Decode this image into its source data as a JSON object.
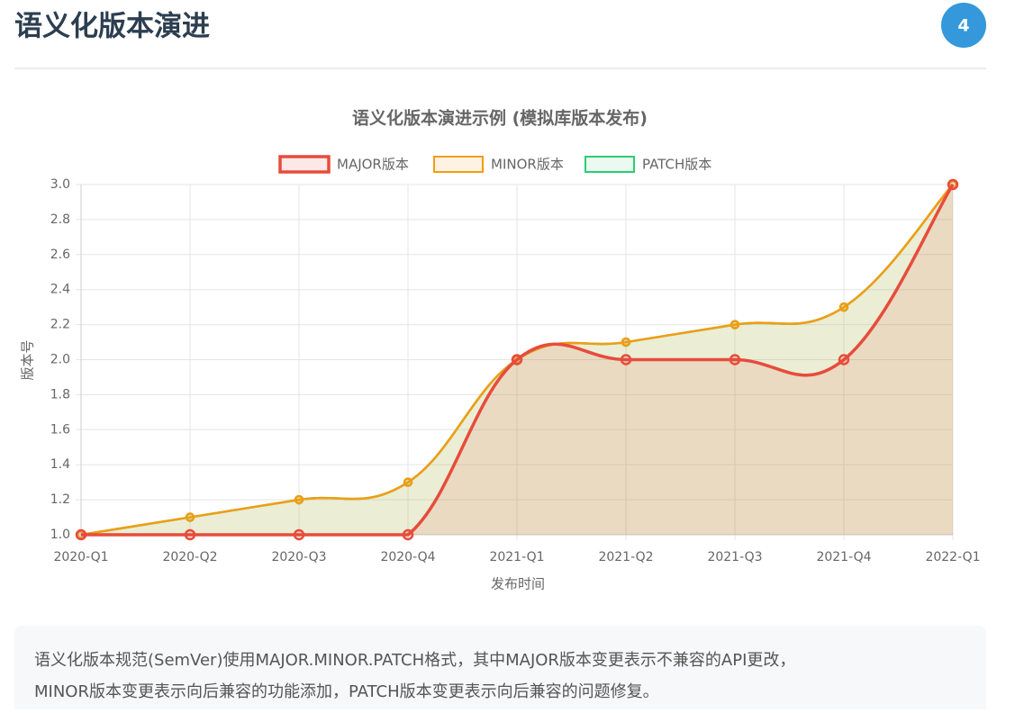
{
  "header": {
    "title": "语义化版本演进",
    "badge": "4"
  },
  "chart_data": {
    "type": "line",
    "title": "语义化版本演进示例 (模拟库版本发布)",
    "x_label": "发布时间",
    "y_label": "版本号",
    "categories": [
      "2020-Q1",
      "2020-Q2",
      "2020-Q3",
      "2020-Q4",
      "2021-Q1",
      "2021-Q2",
      "2021-Q3",
      "2021-Q4",
      "2022-Q1"
    ],
    "series": [
      {
        "name": "MAJOR版本",
        "color": "#e74c3c",
        "fill_color": "rgba(231,76,60,0.12)",
        "values": [
          1,
          1,
          1,
          1,
          2,
          2,
          2,
          2,
          3
        ]
      },
      {
        "name": "MINOR版本",
        "color": "#f39c12",
        "fill_color": "rgba(243,156,18,0.12)",
        "values": [
          1,
          1.1,
          1.2,
          1.3,
          2,
          2.1,
          2.2,
          2.3,
          3
        ]
      },
      {
        "name": "PATCH版本",
        "color": "#2ecc71",
        "fill_color": "rgba(46,204,113,0.1)",
        "values": [
          1,
          1.1,
          1.2,
          1.3,
          2,
          2.1,
          2.2,
          2.3,
          3
        ]
      }
    ],
    "ylim": [
      1,
      3
    ],
    "yticks": [
      {
        "value": 1,
        "label": "1.0"
      },
      1.2,
      1.4,
      1.6,
      1.8,
      {
        "value": 2,
        "label": "2.0"
      },
      2.2,
      2.4,
      2.6,
      2.8,
      {
        "value": 3,
        "label": "3.0"
      }
    ],
    "grid": true,
    "legend": "top"
  },
  "note": {
    "lines": [
      "语义化版本规范(SemVer)使用MAJOR.MINOR.PATCH格式，其中MAJOR版本变更表示不兼容的API更改，",
      "MINOR版本变更表示向后兼容的功能添加，PATCH版本变更表示向后兼容的问题修复。"
    ]
  }
}
